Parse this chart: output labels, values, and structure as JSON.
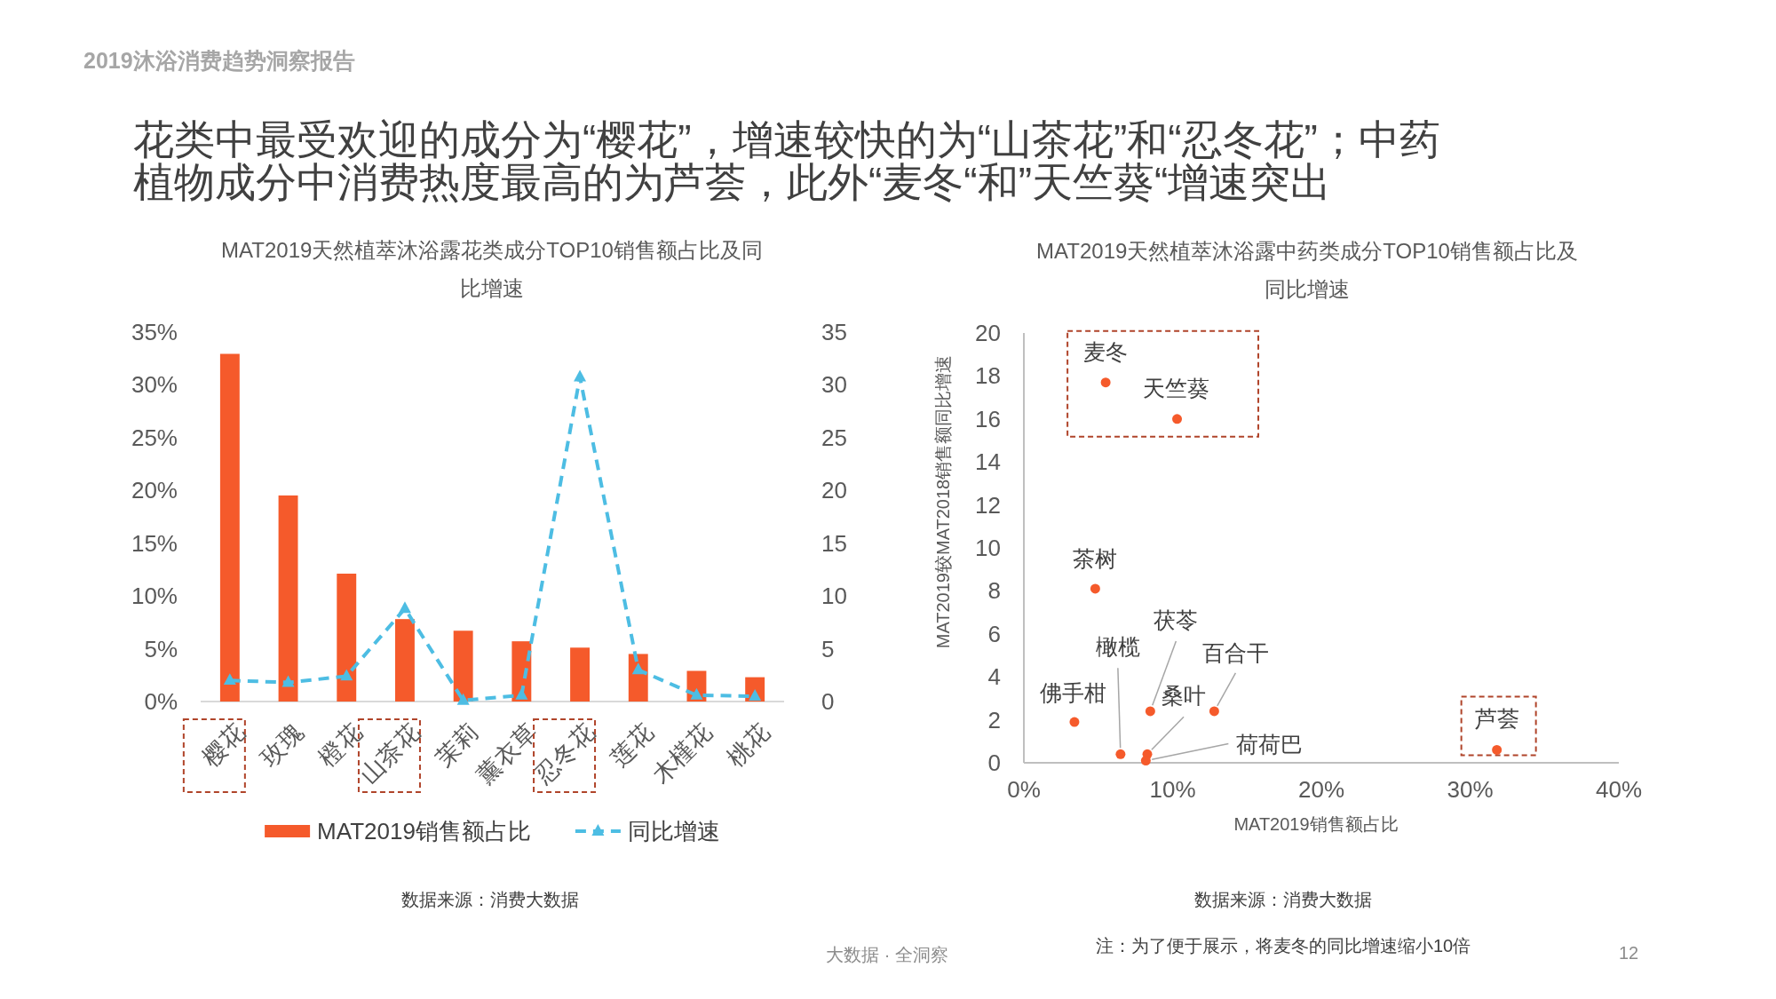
{
  "chart_data": [
    {
      "type": "bar",
      "title": "MAT2019天然植萃沐浴露花类成分TOP10销售额占比及同比增速",
      "categories": [
        "樱花",
        "玫瑰",
        "橙花",
        "山茶花",
        "茉莉",
        "薰衣草",
        "忍冬花",
        "莲花",
        "木槿花",
        "桃花"
      ],
      "series": [
        {
          "name": "MAT2019销售额占比",
          "color": "#f55a2b",
          "values": [
            32.9,
            19.5,
            12.1,
            7.8,
            6.7,
            5.7,
            5.1,
            4.5,
            2.9,
            2.3
          ]
        },
        {
          "name": "同比增速",
          "type": "line",
          "axis": "y2",
          "color": "#4dbde3",
          "values": [
            2.0,
            1.8,
            2.4,
            8.8,
            0.1,
            0.6,
            30.7,
            3.0,
            0.6,
            0.5
          ],
          "marker": "triangle",
          "line_style": "dashed"
        }
      ],
      "ylim": [
        0,
        35
      ],
      "yticks": [
        {
          "value": 0,
          "label": "0%"
        },
        {
          "value": 5,
          "label": "5%"
        },
        {
          "value": 10,
          "label": "10%"
        },
        {
          "value": 15,
          "label": "15%"
        },
        {
          "value": 20,
          "label": "20%"
        },
        {
          "value": 25,
          "label": "25%"
        },
        {
          "value": 30,
          "label": "30%"
        },
        {
          "value": 35,
          "label": "35%"
        }
      ],
      "y2lim": [
        0,
        35
      ],
      "y2ticks": [
        0,
        5,
        10,
        15,
        20,
        25,
        30,
        35
      ],
      "legend": "bottom",
      "annotations": [
        "2019沐浴消费趋势洞察报告",
        "花类中最受欢迎的成分为“樱花”，增速较快的为“山茶花”和“忍冬花”；中药植物成分中消费热度最高的为芦荟，此外“麦冬“和”天竺葵“增速突出",
        "数据来源：消费大数据"
      ]
    },
    {
      "type": "scatter",
      "title": "MAT2019天然植萃沐浴露中药类成分TOP10销售额占比及同比增速",
      "xlabel": "MAT2019销售额占比",
      "ylabel": "MAT2019较MAT2018销售额同比增速",
      "x": [
        5.5,
        10.3,
        4.8,
        3.4,
        6.5,
        8.5,
        12.8,
        8.3,
        8.2,
        31.8
      ],
      "values": [
        17.7,
        16.0,
        8.1,
        1.9,
        0.4,
        2.4,
        2.4,
        0.4,
        0.1,
        0.6
      ],
      "color": "#f55a2b",
      "marker": "circle",
      "xlim": [
        0,
        40
      ],
      "xticks": [
        {
          "value": 0,
          "label": "0%"
        },
        {
          "value": 10,
          "label": "10%"
        },
        {
          "value": 20,
          "label": "20%"
        },
        {
          "value": 30,
          "label": "30%"
        },
        {
          "value": 40,
          "label": "40%"
        }
      ],
      "ylim": [
        0,
        20
      ],
      "yticks": [
        0,
        2,
        4,
        6,
        8,
        10,
        12,
        14,
        16,
        18,
        20
      ],
      "annotations": [
        {
          "text": "麦冬",
          "x": 5.5,
          "y": 17.7
        },
        {
          "text": "天竺葵",
          "x": 10.3,
          "y": 16.0
        },
        {
          "text": "茶树",
          "x": 4.8,
          "y": 8.1
        },
        {
          "text": "佛手柑",
          "x": 3.4,
          "y": 1.9
        },
        {
          "text": "橄榄",
          "x": 6.5,
          "y": 0.4
        },
        {
          "text": "茯苓",
          "x": 8.5,
          "y": 2.4
        },
        {
          "text": "百合干",
          "x": 12.8,
          "y": 2.4
        },
        {
          "text": "桑叶",
          "x": 8.3,
          "y": 0.4
        },
        {
          "text": "荷荷巴",
          "x": 8.2,
          "y": 0.1
        },
        {
          "text": "芦荟",
          "x": 31.8,
          "y": 0.6
        },
        "数据来源：消费大数据",
        "注：为了便于展示，将麦冬的同比增速缩小10倍",
        "大数据 · 全洞察",
        "12"
      ]
    }
  ]
}
